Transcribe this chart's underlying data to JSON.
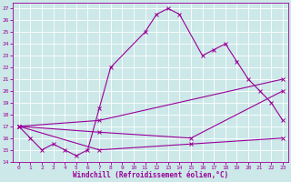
{
  "bg_color": "#cce8e8",
  "grid_color": "#ffffff",
  "line_color": "#990099",
  "xlabel": "Windchill (Refroidissement éolien,°C)",
  "xlim": [
    -0.5,
    23.5
  ],
  "ylim": [
    14,
    27.5
  ],
  "xticks": [
    0,
    1,
    2,
    3,
    4,
    5,
    6,
    7,
    8,
    9,
    10,
    11,
    12,
    13,
    14,
    15,
    16,
    17,
    18,
    19,
    20,
    21,
    22,
    23
  ],
  "yticks": [
    14,
    15,
    16,
    17,
    18,
    19,
    20,
    21,
    22,
    23,
    24,
    25,
    26,
    27
  ],
  "line1_x": [
    0,
    1,
    2,
    3,
    4,
    5,
    6,
    7,
    8,
    11,
    12,
    13,
    14,
    16,
    17,
    18,
    19,
    20,
    21,
    22,
    23
  ],
  "line1_y": [
    17,
    16,
    15,
    15.5,
    15,
    14.5,
    15,
    18.5,
    22,
    25,
    26.5,
    27,
    26.5,
    23,
    23.5,
    24,
    22.5,
    21,
    20,
    19,
    17.5
  ],
  "line2_x": [
    0,
    7,
    23
  ],
  "line2_y": [
    17,
    17.5,
    21
  ],
  "line3_x": [
    0,
    7,
    15,
    23
  ],
  "line3_y": [
    17,
    16.5,
    16,
    20
  ],
  "line4_x": [
    0,
    7,
    15,
    23
  ],
  "line4_y": [
    17,
    15,
    15.5,
    16
  ]
}
